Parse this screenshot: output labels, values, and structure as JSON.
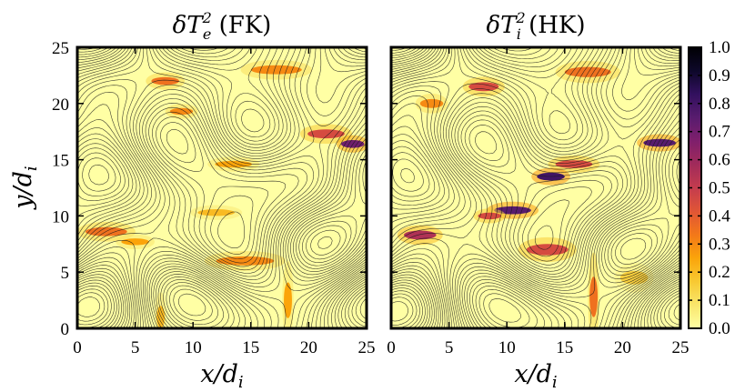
{
  "chart_data": {
    "type": "heatmap",
    "panels": [
      {
        "name": "electrons-fk",
        "title_symbol": "δT",
        "title_sub": "e",
        "title_sup": "2",
        "title_suffix": " (FK)",
        "xlabel_var": "x/d",
        "xlabel_sub": "i",
        "ylabel_var": "y/d",
        "ylabel_sub": "i",
        "xlim": [
          0,
          25
        ],
        "ylim": [
          0,
          25
        ],
        "xticks": [
          "0",
          "5",
          "10",
          "15",
          "20",
          "25"
        ],
        "yticks": [
          "0",
          "5",
          "10",
          "15",
          "20",
          "25"
        ],
        "hotspots": [
          {
            "x": 7.6,
            "y": 22.0,
            "a": 1.2,
            "r": 0.35,
            "v": 0.35
          },
          {
            "x": 9.0,
            "y": 19.3,
            "a": 1.0,
            "r": 0.3,
            "v": 0.3
          },
          {
            "x": 17.2,
            "y": 23.0,
            "a": 2.2,
            "r": 0.4,
            "v": 0.3
          },
          {
            "x": 21.5,
            "y": 17.3,
            "a": 1.6,
            "r": 0.4,
            "v": 0.45
          },
          {
            "x": 23.8,
            "y": 16.4,
            "a": 1.0,
            "r": 0.35,
            "v": 0.7
          },
          {
            "x": 13.5,
            "y": 14.6,
            "a": 1.6,
            "r": 0.3,
            "v": 0.25
          },
          {
            "x": 12.0,
            "y": 10.3,
            "a": 1.6,
            "r": 0.3,
            "v": 0.2
          },
          {
            "x": 2.5,
            "y": 8.6,
            "a": 1.8,
            "r": 0.4,
            "v": 0.35
          },
          {
            "x": 5.0,
            "y": 7.7,
            "a": 1.2,
            "r": 0.3,
            "v": 0.25
          },
          {
            "x": 14.5,
            "y": 6.0,
            "a": 2.5,
            "r": 0.4,
            "v": 0.3
          },
          {
            "x": 18.2,
            "y": 2.5,
            "a": 0.35,
            "r": 1.6,
            "v": 0.25
          },
          {
            "x": 7.2,
            "y": 1.0,
            "a": 0.35,
            "r": 1.0,
            "v": 0.2
          }
        ]
      },
      {
        "name": "ions-hk",
        "title_symbol": "δT",
        "title_sub": "i",
        "title_sup": "2",
        "title_suffix": " (HK)",
        "xlabel_var": "x/d",
        "xlabel_sub": "i",
        "ylabel_var": "",
        "ylabel_sub": "",
        "xlim": [
          0,
          25
        ],
        "ylim": [
          0,
          25
        ],
        "xticks": [
          "0",
          "5",
          "10",
          "15",
          "20",
          "25"
        ],
        "yticks": [],
        "hotspots": [
          {
            "x": 8.0,
            "y": 21.5,
            "a": 1.3,
            "r": 0.4,
            "v": 0.45
          },
          {
            "x": 3.5,
            "y": 20.0,
            "a": 1.0,
            "r": 0.4,
            "v": 0.3
          },
          {
            "x": 17.0,
            "y": 22.8,
            "a": 2.0,
            "r": 0.45,
            "v": 0.35
          },
          {
            "x": 23.2,
            "y": 16.5,
            "a": 1.4,
            "r": 0.35,
            "v": 0.75
          },
          {
            "x": 15.8,
            "y": 14.6,
            "a": 1.6,
            "r": 0.35,
            "v": 0.45
          },
          {
            "x": 13.8,
            "y": 13.5,
            "a": 1.2,
            "r": 0.35,
            "v": 0.8
          },
          {
            "x": 10.5,
            "y": 10.5,
            "a": 1.6,
            "r": 0.35,
            "v": 0.75
          },
          {
            "x": 8.5,
            "y": 10.0,
            "a": 1.0,
            "r": 0.3,
            "v": 0.45
          },
          {
            "x": 2.5,
            "y": 8.3,
            "a": 1.4,
            "r": 0.4,
            "v": 0.55
          },
          {
            "x": 13.5,
            "y": 7.0,
            "a": 1.8,
            "r": 0.5,
            "v": 0.45
          },
          {
            "x": 17.5,
            "y": 2.8,
            "a": 0.35,
            "r": 1.8,
            "v": 0.35
          },
          {
            "x": 21.0,
            "y": 4.5,
            "a": 1.2,
            "r": 0.6,
            "v": 0.15
          }
        ]
      }
    ],
    "colorbar": {
      "range": [
        0.0,
        1.0
      ],
      "ticks": [
        "1.0",
        "0.9",
        "0.8",
        "0.7",
        "0.6",
        "0.5",
        "0.4",
        "0.3",
        "0.2",
        "0.1",
        "0.0"
      ],
      "colors": [
        "#ffffa4",
        "#f9e66c",
        "#f8c932",
        "#fba40a",
        "#f37819",
        "#e05536",
        "#c43c4e",
        "#a12b5a",
        "#7f1f6c",
        "#581c6e",
        "#32105e",
        "#0d0829",
        "#000004"
      ]
    },
    "contour_color": "#1a1a1a"
  }
}
